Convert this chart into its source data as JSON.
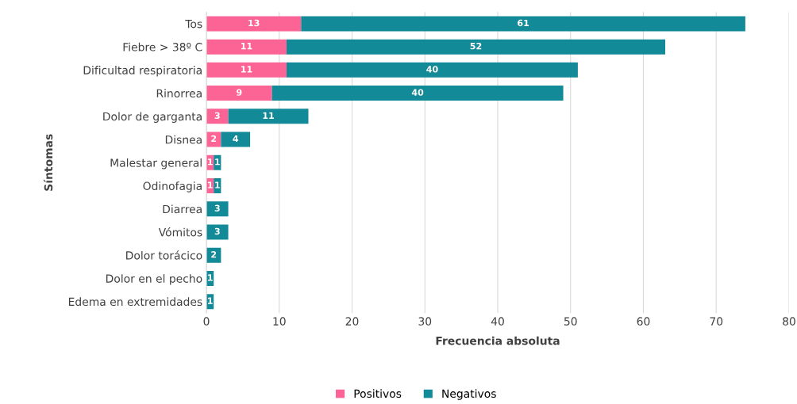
{
  "chart_data": {
    "type": "bar",
    "orientation": "horizontal",
    "stacked": true,
    "categories": [
      "Tos",
      "Fiebre > 38º C",
      "Dificultad respiratoria",
      "Rinorrea",
      "Dolor de garganta",
      "Disnea",
      "Malestar general",
      "Odinofagia",
      "Diarrea",
      "Vómitos",
      "Dolor torácico",
      "Dolor en el pecho",
      "Edema en extremidades"
    ],
    "series": [
      {
        "name": "Positivos",
        "color": "#fd6496",
        "values": [
          13,
          11,
          11,
          9,
          3,
          2,
          1,
          1,
          null,
          null,
          null,
          null,
          null
        ]
      },
      {
        "name": "Negativos",
        "color": "#138a98",
        "values": [
          61,
          52,
          40,
          40,
          11,
          4,
          1,
          1,
          3,
          3,
          2,
          1,
          1
        ]
      }
    ],
    "xlabel": "Frecuencia absoluta",
    "ylabel": "Síntomas",
    "xlim": [
      0,
      80
    ],
    "xticks": [
      0,
      10,
      20,
      30,
      40,
      50,
      60,
      70,
      80
    ],
    "grid": "x",
    "legend": "bottom",
    "data_labels": true
  }
}
